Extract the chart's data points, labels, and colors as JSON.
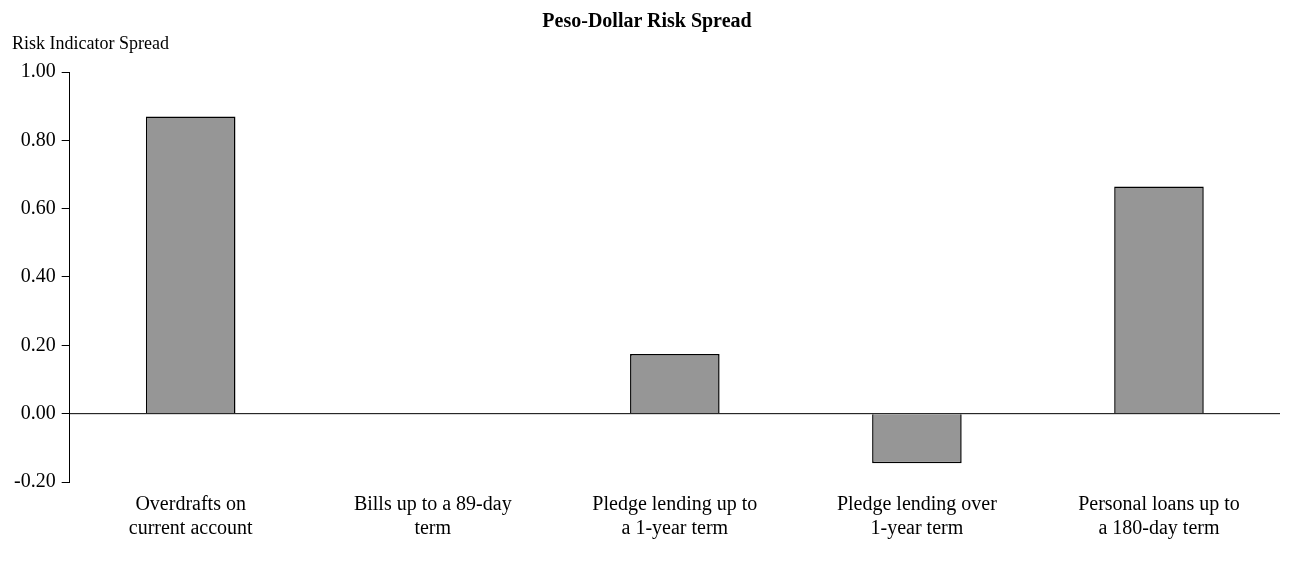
{
  "chart_data": {
    "type": "bar",
    "title": "Peso-Dollar Risk Spread",
    "ylabel": "Risk Indicator Spread",
    "categories": [
      "Overdrafts on current account",
      "Bills up to a 89-day term",
      "Pledge lending up to a 1-year term",
      "Pledge lending over 1-year term",
      "Personal loans up to a 180-day term"
    ],
    "values": [
      0.87,
      0,
      0.175,
      -0.145,
      0.665
    ],
    "color": "#969696",
    "ylim": [
      -0.2,
      1
    ],
    "yticks": [
      {
        "value": -0.2,
        "label": "-0.20"
      },
      {
        "value": 0,
        "label": "0.00"
      },
      {
        "value": 0.2,
        "label": "0.20"
      },
      {
        "value": 0.4,
        "label": "0.40"
      },
      {
        "value": 0.6,
        "label": "0.60"
      },
      {
        "value": 0.8,
        "label": "0.80"
      },
      {
        "value": 1,
        "label": "1.00"
      }
    ],
    "legend": false
  }
}
